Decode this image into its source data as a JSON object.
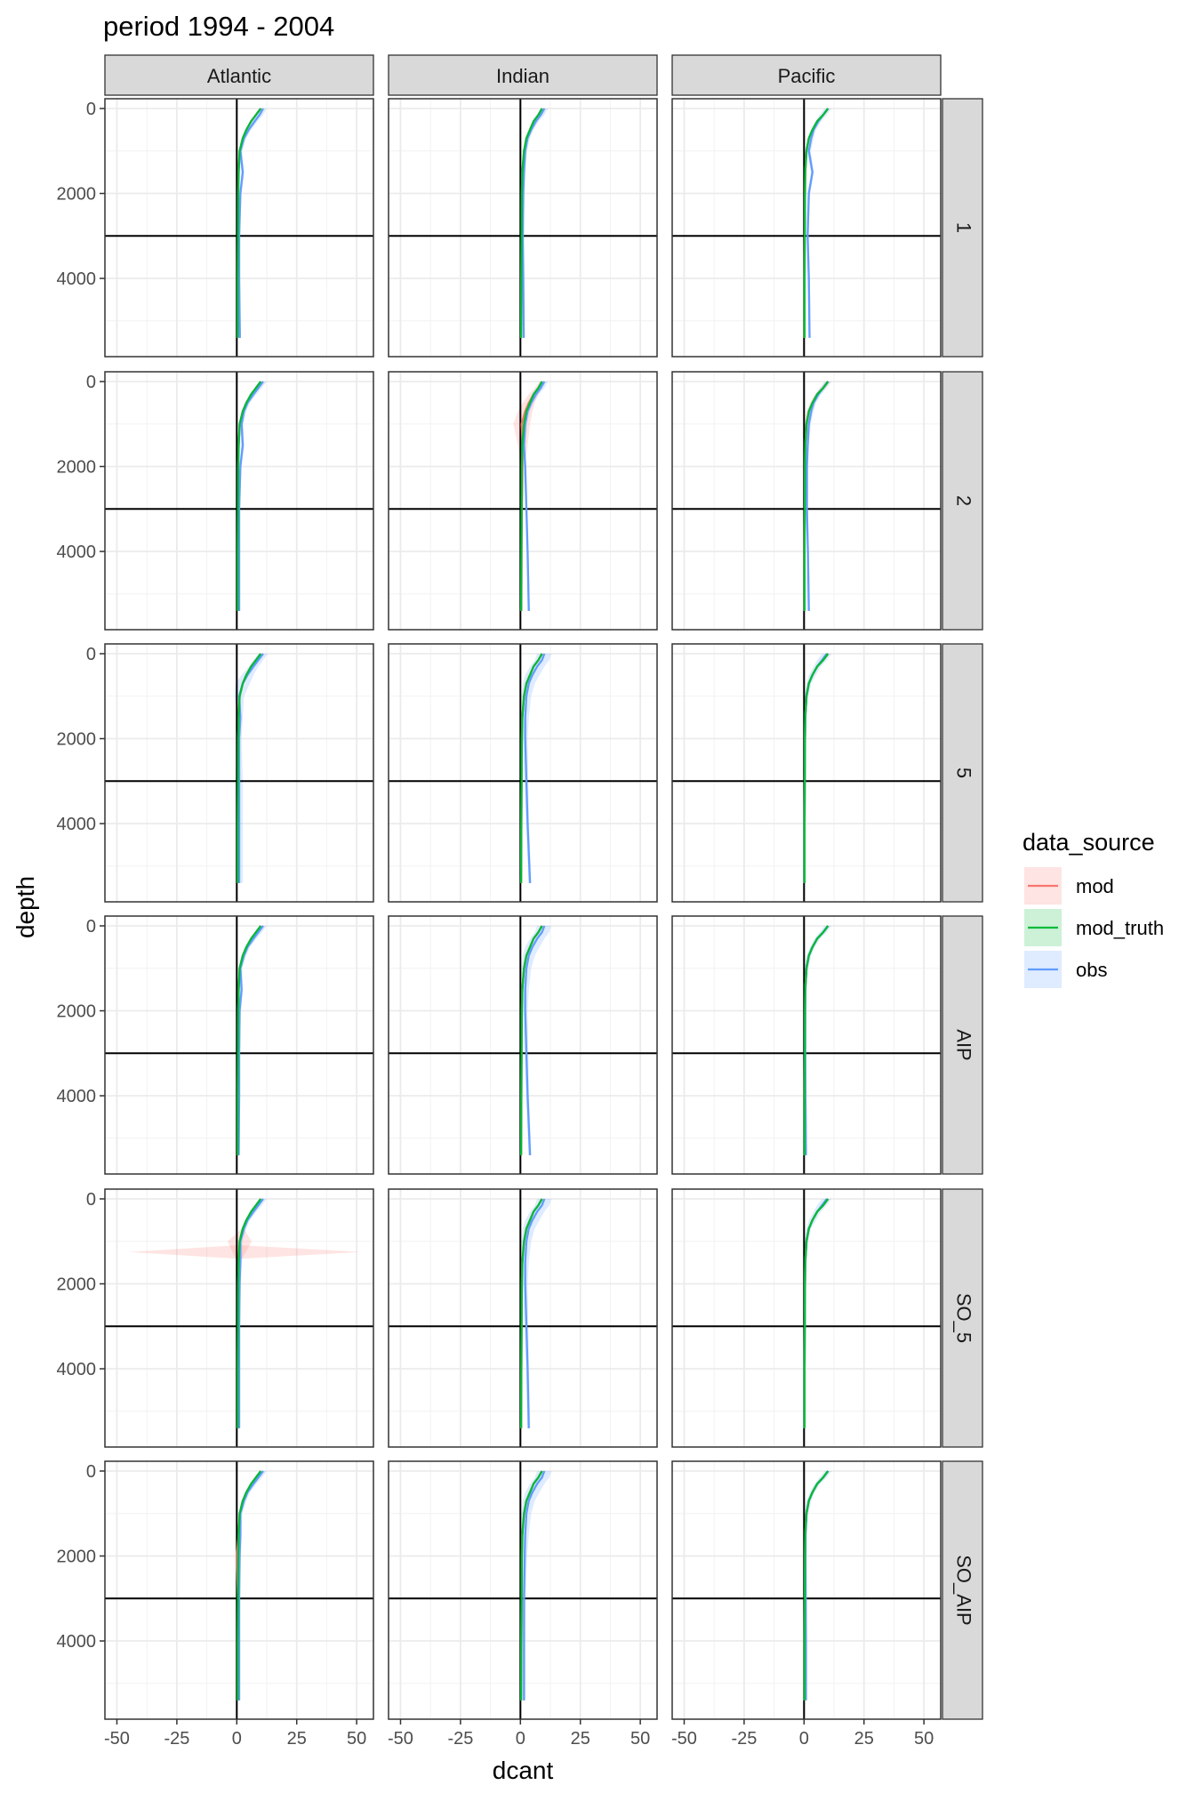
{
  "chart_data": {
    "type": "line",
    "title": "period 1994 - 2004",
    "xlabel": "dcant",
    "ylabel": "depth",
    "columns": [
      "Atlantic",
      "Indian",
      "Pacific"
    ],
    "rows": [
      "1",
      "2",
      "5",
      "AIP",
      "SO_5",
      "SO_AIP"
    ],
    "xlim": [
      -55,
      57
    ],
    "ylim": [
      0,
      5800
    ],
    "x_ticks": [
      -50,
      -25,
      0,
      25,
      50
    ],
    "x_tick_labels": [
      "-50",
      "-25",
      "0",
      "25",
      "50"
    ],
    "y_ticks": [
      0,
      2000,
      4000
    ],
    "y_tick_labels": [
      "0",
      "2000",
      "4000"
    ],
    "y_reversed": true,
    "reference_lines": {
      "vline_x": 0,
      "hline_depth": 3000
    },
    "grid": true,
    "legend": {
      "title": "data_source",
      "position": "right",
      "entries": [
        {
          "name": "mod",
          "color": "#F8766D"
        },
        {
          "name": "mod_truth",
          "color": "#00BA38"
        },
        {
          "name": "obs",
          "color": "#619CFF"
        }
      ]
    },
    "series_colors": {
      "mod": "#F8766D",
      "mod_truth": "#00BA38",
      "obs": "#619CFF"
    },
    "depth_levels": [
      0,
      150,
      300,
      500,
      700,
      1000,
      1500,
      2000,
      3000,
      4000,
      5400
    ],
    "panels": [
      {
        "row": "1",
        "col": "Atlantic",
        "mod_truth": [
          10,
          8,
          6,
          4,
          2.5,
          1.2,
          0.8,
          0.6,
          0.5,
          0.4,
          0.4
        ],
        "mod": [
          10,
          8,
          6,
          4,
          2.5,
          1.2,
          0.7,
          0.6,
          0.5,
          0.4,
          0.4
        ],
        "obs": [
          11,
          9.5,
          7.5,
          5,
          3,
          1.5,
          2.5,
          1.5,
          1,
          1,
          1.3
        ],
        "mod_band": [
          0.5,
          0.5,
          0.5,
          0.5,
          0.4,
          0.3,
          0.2,
          0.2,
          0.1,
          0.1,
          0.1
        ],
        "obs_band": [
          1.5,
          1.5,
          1.2,
          1,
          1,
          0.8,
          0.6,
          0.5,
          0.4,
          0.4,
          0.4
        ]
      },
      {
        "row": "1",
        "col": "Indian",
        "mod_truth": [
          9,
          7.5,
          5.5,
          4,
          2.5,
          1.5,
          0.8,
          0.6,
          0.5,
          0.4,
          0.3
        ],
        "mod": [
          9,
          7.5,
          5.5,
          4,
          2.5,
          1.5,
          0.8,
          0.6,
          0.5,
          0.4,
          0.3
        ],
        "obs": [
          10,
          8.5,
          6.5,
          4.5,
          3,
          2,
          1.5,
          1.2,
          1,
          1.2,
          1.4
        ],
        "mod_band": [
          0.5,
          0.5,
          0.5,
          0.5,
          0.4,
          0.3,
          0.2,
          0.2,
          0.1,
          0.1,
          0.1
        ],
        "obs_band": [
          1.5,
          1.5,
          1.2,
          1,
          1,
          0.8,
          0.6,
          0.5,
          0.4,
          0.4,
          0.4
        ]
      },
      {
        "row": "1",
        "col": "Pacific",
        "mod_truth": [
          10,
          8,
          5.5,
          3.5,
          2,
          1,
          0.5,
          0.4,
          0.3,
          0.2,
          0.2
        ],
        "mod": [
          10,
          8,
          5.5,
          3.5,
          2,
          1,
          0.5,
          0.4,
          0.3,
          0.2,
          0.2
        ],
        "obs": [
          10,
          8,
          6,
          4,
          3,
          2,
          3.5,
          2,
          1.5,
          2,
          2.3
        ],
        "mod_band": [
          0.5,
          0.5,
          0.5,
          0.5,
          0.4,
          0.3,
          0.2,
          0.2,
          0.1,
          0.1,
          0.1
        ],
        "obs_band": [
          1.5,
          1.5,
          1.2,
          1,
          1,
          0.8,
          0.6,
          0.5,
          0.4,
          0.4,
          0.4
        ]
      },
      {
        "row": "2",
        "col": "Atlantic",
        "mod_truth": [
          10,
          8,
          6,
          4,
          2.5,
          1.2,
          0.8,
          0.6,
          0.5,
          0.4,
          0.4
        ],
        "mod": [
          10,
          8,
          6,
          4,
          2.5,
          1.2,
          0.8,
          0.6,
          0.5,
          0.4,
          0.4
        ],
        "obs": [
          11,
          9,
          7,
          4.5,
          3,
          2,
          2.5,
          1.5,
          1,
          1,
          1
        ],
        "mod_band": [
          0.5,
          0.5,
          0.5,
          0.5,
          0.4,
          0.3,
          0.2,
          0.2,
          0.1,
          0.1,
          0.1
        ],
        "obs_band": [
          1.5,
          1.5,
          1.2,
          1,
          1,
          0.8,
          0.6,
          0.5,
          0.4,
          0.4,
          0.4
        ]
      },
      {
        "row": "2",
        "col": "Indian",
        "mod_truth": [
          9,
          7.5,
          5.5,
          4,
          2.5,
          1.5,
          0.8,
          0.6,
          0.5,
          0.4,
          0.3
        ],
        "mod": [
          9,
          7.5,
          5.5,
          3.5,
          2,
          0.5,
          1,
          0.8,
          0.6,
          0.5,
          0.4
        ],
        "obs": [
          10,
          8.5,
          6.5,
          4.5,
          3,
          2,
          1.5,
          2,
          2.5,
          3,
          3.5
        ],
        "mod_band": [
          1,
          1.5,
          2,
          2.5,
          3,
          3.5,
          2,
          1,
          0.5,
          0.3,
          0.3
        ],
        "obs_band": [
          1.5,
          1.5,
          1.2,
          1,
          1,
          0.8,
          0.6,
          0.5,
          0.4,
          0.4,
          0.4
        ]
      },
      {
        "row": "2",
        "col": "Pacific",
        "mod_truth": [
          10,
          8,
          5.5,
          3.5,
          2,
          1,
          0.5,
          0.4,
          0.3,
          0.2,
          0.2
        ],
        "mod": [
          10,
          8,
          5.5,
          3.5,
          2,
          1,
          0.5,
          0.4,
          0.3,
          0.2,
          0.2
        ],
        "obs": [
          10,
          8,
          6,
          4,
          3,
          2,
          1.5,
          1.2,
          1.2,
          1.6,
          2
        ],
        "mod_band": [
          1,
          1,
          1,
          1,
          1,
          0.8,
          0.4,
          0.2,
          0.1,
          0.1,
          0.1
        ],
        "obs_band": [
          1.5,
          1.5,
          1.2,
          1,
          1,
          0.8,
          0.6,
          0.5,
          0.4,
          0.4,
          0.4
        ]
      },
      {
        "row": "5",
        "col": "Atlantic",
        "mod_truth": [
          10,
          8,
          6,
          4,
          2.5,
          1.2,
          0.8,
          0.6,
          0.5,
          0.4,
          0.4
        ],
        "mod": [
          10,
          8,
          6,
          4,
          2.5,
          1.2,
          0.8,
          0.6,
          0.5,
          0.4,
          0.4
        ],
        "obs": [
          11,
          9,
          7,
          4.5,
          2.5,
          1,
          1.5,
          1,
          1,
          1,
          1
        ],
        "mod_band": [
          0.5,
          0.5,
          0.5,
          0.5,
          0.4,
          0.3,
          0.2,
          0.2,
          0.1,
          0.1,
          0.1
        ],
        "obs_band": [
          2,
          2,
          2,
          2.5,
          3,
          2,
          1,
          1,
          1.5,
          1.5,
          1.5
        ]
      },
      {
        "row": "5",
        "col": "Indian",
        "mod_truth": [
          9,
          7.5,
          5.5,
          4,
          2.5,
          1.5,
          0.8,
          0.6,
          0.5,
          0.4,
          0.3
        ],
        "mod": [
          9,
          7.5,
          5.5,
          4,
          2.5,
          1.5,
          0.8,
          0.6,
          0.5,
          0.4,
          0.3
        ],
        "obs": [
          10,
          9,
          7,
          5,
          3.5,
          2.5,
          2,
          2,
          2.5,
          3,
          4
        ],
        "mod_band": [
          0.5,
          0.5,
          0.5,
          0.5,
          0.4,
          0.3,
          0.2,
          0.2,
          0.1,
          0.1,
          0.1
        ],
        "obs_band": [
          3,
          3,
          3,
          3,
          2.5,
          2,
          1.5,
          1,
          0.8,
          0.6,
          0.6
        ]
      },
      {
        "row": "5",
        "col": "Pacific",
        "mod_truth": [
          10,
          8,
          5.5,
          3.5,
          2,
          1,
          0.5,
          0.4,
          0.3,
          0.2,
          0.2
        ],
        "mod": [
          10,
          8,
          5.5,
          3.5,
          2,
          1,
          0.5,
          0.4,
          0.3,
          0.2,
          0.2
        ],
        "obs": [
          9.5,
          7.5,
          5.5,
          3.5,
          2,
          1,
          0.5,
          0.4,
          0.3,
          0.2,
          0.2
        ],
        "mod_band": [
          0.5,
          0.5,
          0.5,
          0.5,
          0.4,
          0.3,
          0.2,
          0.2,
          0.1,
          0.1,
          0.1
        ],
        "obs_band": [
          2,
          2,
          1.5,
          1.5,
          1,
          0.8,
          0.5,
          0.4,
          0.3,
          0.3,
          0.3
        ]
      },
      {
        "row": "AIP",
        "col": "Atlantic",
        "mod_truth": [
          10,
          8,
          6,
          4,
          2.5,
          1.2,
          0.8,
          0.6,
          0.5,
          0.4,
          0.4
        ],
        "mod": [
          10,
          8,
          6,
          4,
          2.5,
          1.2,
          0.8,
          0.6,
          0.5,
          0.4,
          0.4
        ],
        "obs": [
          11,
          9,
          7,
          4.5,
          3,
          1.5,
          2,
          1.2,
          1,
          1,
          0.8
        ],
        "mod_band": [
          0.5,
          0.5,
          0.5,
          0.5,
          0.4,
          0.3,
          0.2,
          0.2,
          0.1,
          0.1,
          0.1
        ],
        "obs_band": [
          1.5,
          1.5,
          1.2,
          1,
          1,
          0.8,
          0.6,
          0.5,
          0.4,
          0.4,
          0.4
        ]
      },
      {
        "row": "AIP",
        "col": "Indian",
        "mod_truth": [
          9,
          7.5,
          5.5,
          4,
          2.5,
          1.5,
          0.8,
          0.6,
          0.5,
          0.4,
          0.3
        ],
        "mod": [
          9,
          7.5,
          5.5,
          4,
          2.5,
          1.5,
          0.8,
          0.6,
          0.5,
          0.4,
          0.3
        ],
        "obs": [
          10,
          9,
          7,
          5,
          3.5,
          2.5,
          2,
          2,
          2.5,
          3,
          4
        ],
        "mod_band": [
          0.5,
          0.5,
          0.5,
          0.5,
          0.4,
          0.3,
          0.2,
          0.2,
          0.1,
          0.1,
          0.1
        ],
        "obs_band": [
          3,
          3,
          3,
          3,
          2.5,
          2,
          1.5,
          1,
          0.8,
          0.6,
          0.6
        ]
      },
      {
        "row": "AIP",
        "col": "Pacific",
        "mod_truth": [
          10,
          8,
          5.5,
          3.5,
          2,
          1,
          0.5,
          0.4,
          0.3,
          0.2,
          0.2
        ],
        "mod": [
          10,
          8,
          5.5,
          3.5,
          2,
          1,
          0.5,
          0.4,
          0.3,
          0.2,
          0.2
        ],
        "obs": [
          10,
          8,
          5.5,
          3.5,
          2,
          1,
          0.5,
          0.5,
          0.5,
          0.6,
          0.8
        ],
        "mod_band": [
          0.5,
          0.5,
          0.5,
          0.5,
          0.4,
          0.3,
          0.2,
          0.2,
          0.1,
          0.1,
          0.1
        ],
        "obs_band": [
          1.5,
          1.5,
          1.2,
          1,
          1,
          0.8,
          0.6,
          0.5,
          0.4,
          0.4,
          0.4
        ]
      },
      {
        "row": "SO_5",
        "col": "Atlantic",
        "mod_truth": [
          10,
          8,
          6,
          4,
          2.5,
          1.2,
          0.8,
          0.6,
          0.5,
          0.4,
          0.4
        ],
        "mod": [
          10,
          8,
          6,
          4,
          2.5,
          1.2,
          0.8,
          0.6,
          0.5,
          0.4,
          0.4
        ],
        "obs": [
          11,
          9,
          7,
          4.5,
          3,
          1.5,
          1.5,
          1.2,
          1,
          1,
          1
        ],
        "mod_band": [
          0.5,
          0.5,
          0.5,
          0.5,
          0.4,
          5,
          0.5,
          0.2,
          0.1,
          0.1,
          0.1
        ],
        "obs_band": [
          1.5,
          1.5,
          1.2,
          1,
          1,
          0.8,
          0.6,
          0.5,
          0.4,
          0.4,
          0.4
        ],
        "spike": {
          "depth": 1250,
          "xmin": -45,
          "xmax": 52
        }
      },
      {
        "row": "SO_5",
        "col": "Indian",
        "mod_truth": [
          9,
          7.5,
          5.5,
          4,
          2.5,
          1.5,
          0.8,
          0.6,
          0.5,
          0.4,
          0.3
        ],
        "mod": [
          9,
          7.5,
          5.5,
          4,
          2.5,
          1.5,
          0.8,
          0.6,
          0.5,
          0.4,
          0.3
        ],
        "obs": [
          10,
          9,
          7,
          5,
          3.5,
          2.5,
          2,
          2,
          2.5,
          3,
          3.5
        ],
        "mod_band": [
          0.5,
          0.5,
          0.5,
          0.5,
          0.4,
          0.3,
          0.2,
          0.2,
          0.1,
          0.1,
          0.1
        ],
        "obs_band": [
          3,
          3,
          3,
          3,
          2.5,
          2,
          1.5,
          1,
          0.8,
          0.6,
          0.6
        ]
      },
      {
        "row": "SO_5",
        "col": "Pacific",
        "mod_truth": [
          10,
          8,
          5.5,
          3.5,
          2,
          1,
          0.5,
          0.4,
          0.3,
          0.2,
          0.2
        ],
        "mod": [
          10,
          8,
          5.5,
          3.5,
          2,
          1,
          0.5,
          0.4,
          0.3,
          0.2,
          0.2
        ],
        "obs": [
          9.5,
          7.5,
          5.5,
          3.5,
          2,
          1,
          0.5,
          0.4,
          0.3,
          0.2,
          0.2
        ],
        "mod_band": [
          0.5,
          0.5,
          0.5,
          0.5,
          0.4,
          0.3,
          0.2,
          0.2,
          0.1,
          0.1,
          0.1
        ],
        "obs_band": [
          2,
          2,
          1.5,
          1.5,
          1,
          0.8,
          0.5,
          0.4,
          0.3,
          0.3,
          0.3
        ]
      },
      {
        "row": "SO_AIP",
        "col": "Atlantic",
        "mod_truth": [
          10,
          8,
          6,
          4,
          2.5,
          1.2,
          0.8,
          0.6,
          0.5,
          0.4,
          0.4
        ],
        "mod": [
          10,
          8,
          6,
          4,
          2.5,
          1.2,
          0.8,
          0,
          0.5,
          0.4,
          0.4
        ],
        "obs": [
          11,
          9,
          7,
          4.5,
          3,
          1.5,
          1.5,
          1.2,
          1,
          1,
          1
        ],
        "mod_band": [
          0.5,
          0.5,
          0.5,
          0.5,
          0.4,
          0.3,
          0.2,
          0.6,
          0.1,
          0.1,
          0.1
        ],
        "obs_band": [
          1.5,
          1.5,
          1.2,
          1,
          1,
          0.8,
          0.6,
          0.5,
          0.4,
          0.4,
          0.4
        ]
      },
      {
        "row": "SO_AIP",
        "col": "Indian",
        "mod_truth": [
          9,
          7.5,
          5.5,
          4,
          2.5,
          1.5,
          0.8,
          0.6,
          0.5,
          0.4,
          0.3
        ],
        "mod": [
          9,
          7.5,
          5.5,
          4,
          2.5,
          1.5,
          0.8,
          0.6,
          0.5,
          0.4,
          0.3
        ],
        "obs": [
          10,
          9,
          7,
          5,
          3.5,
          2.5,
          2,
          1.8,
          1.5,
          1.5,
          1.5
        ],
        "mod_band": [
          0.5,
          0.5,
          0.5,
          0.5,
          0.4,
          0.3,
          0.2,
          0.2,
          0.1,
          0.1,
          0.1
        ],
        "obs_band": [
          3,
          3,
          3,
          3,
          2.5,
          2,
          1.5,
          1,
          0.8,
          0.6,
          0.6
        ]
      },
      {
        "row": "SO_AIP",
        "col": "Pacific",
        "mod_truth": [
          10,
          8,
          5.5,
          3.5,
          2,
          1,
          0.5,
          0.4,
          0.3,
          0.2,
          0.2
        ],
        "mod": [
          10,
          8,
          5.5,
          3.5,
          2,
          1,
          0.5,
          0.4,
          0.3,
          0.2,
          0.2
        ],
        "obs": [
          10,
          8,
          5.5,
          3.5,
          2,
          1,
          0.6,
          0.6,
          0.7,
          0.8,
          0.8
        ],
        "mod_band": [
          0.5,
          0.5,
          0.5,
          0.5,
          0.4,
          0.3,
          0.2,
          0.2,
          0.1,
          0.1,
          0.1
        ],
        "obs_band": [
          1.5,
          1.5,
          1.2,
          1,
          1,
          0.8,
          0.6,
          0.5,
          0.4,
          0.4,
          0.4
        ]
      }
    ]
  }
}
